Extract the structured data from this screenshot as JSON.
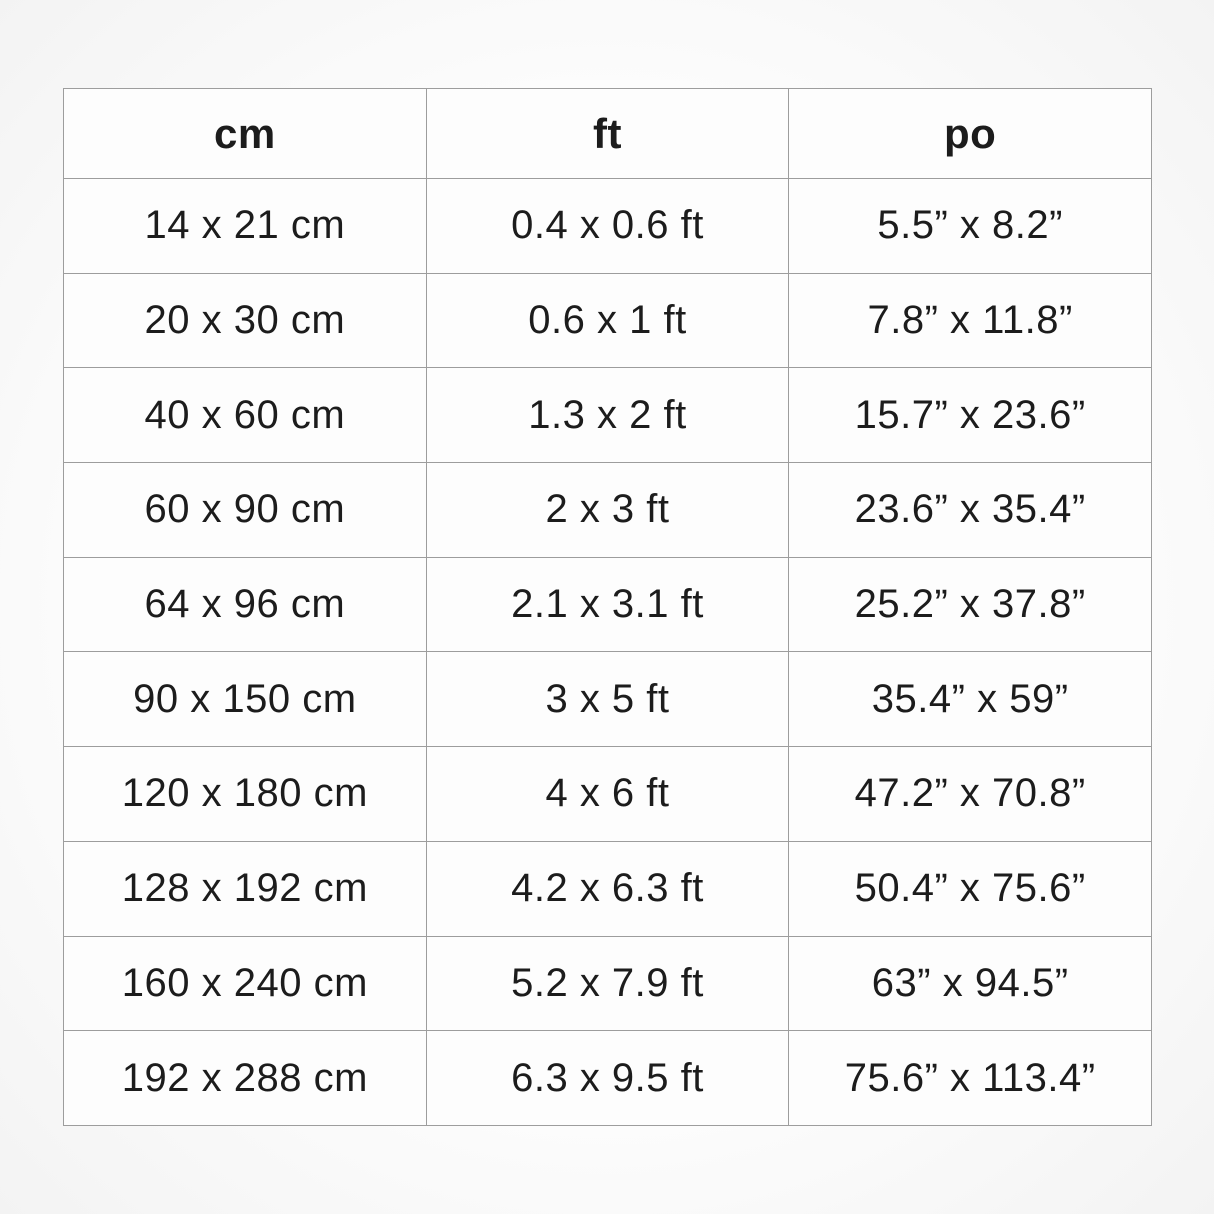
{
  "colors": {
    "border": "#9d9d9d",
    "text": "#1c1c1c",
    "cell_background": "#fdfdfd",
    "page_background": "#fbfbfb"
  },
  "table": {
    "headers": [
      "cm",
      "ft",
      "po"
    ],
    "rows": [
      [
        "14 x 21 cm",
        "0.4 x 0.6 ft",
        "5.5” x 8.2”"
      ],
      [
        "20 x 30 cm",
        "0.6 x 1 ft",
        "7.8” x 11.8”"
      ],
      [
        "40 x 60 cm",
        "1.3 x 2 ft",
        "15.7” x 23.6”"
      ],
      [
        "60 x 90 cm",
        "2 x 3 ft",
        "23.6” x 35.4”"
      ],
      [
        "64 x 96 cm",
        "2.1 x 3.1 ft",
        "25.2” x 37.8”"
      ],
      [
        "90 x 150 cm",
        "3 x 5 ft",
        "35.4” x 59”"
      ],
      [
        "120 x 180 cm",
        "4 x 6 ft",
        "47.2” x 70.8”"
      ],
      [
        "128 x 192 cm",
        "4.2 x 6.3 ft",
        "50.4” x 75.6”"
      ],
      [
        "160 x 240 cm",
        "5.2 x 7.9 ft",
        "63” x 94.5”"
      ],
      [
        "192 x 288 cm",
        "6.3 x 9.5 ft",
        "75.6” x 113.4”"
      ]
    ]
  },
  "chart_data": {
    "type": "table",
    "title": "",
    "columns": [
      "cm",
      "ft",
      "po"
    ],
    "rows": [
      [
        "14 x 21 cm",
        "0.4 x 0.6 ft",
        "5.5” x 8.2”"
      ],
      [
        "20 x 30 cm",
        "0.6 x 1 ft",
        "7.8” x 11.8”"
      ],
      [
        "40 x 60 cm",
        "1.3 x 2 ft",
        "15.7” x 23.6”"
      ],
      [
        "60 x 90 cm",
        "2 x 3 ft",
        "23.6” x 35.4”"
      ],
      [
        "64 x 96 cm",
        "2.1 x 3.1 ft",
        "25.2” x 37.8”"
      ],
      [
        "90 x 150 cm",
        "3 x 5 ft",
        "35.4” x 59”"
      ],
      [
        "120 x 180 cm",
        "4 x 6 ft",
        "47.2” x 70.8”"
      ],
      [
        "128 x 192 cm",
        "4.2 x 6.3 ft",
        "50.4” x 75.6”"
      ],
      [
        "160 x 240 cm",
        "5.2 x 7.9 ft",
        "63” x 94.5”"
      ],
      [
        "192 x 288 cm",
        "6.3 x 9.5 ft",
        "75.6” x 113.4”"
      ]
    ],
    "layout_hints": {
      "grid": true,
      "header_bold": true,
      "text_align": "center",
      "column_count": 3,
      "row_count": 10
    }
  }
}
